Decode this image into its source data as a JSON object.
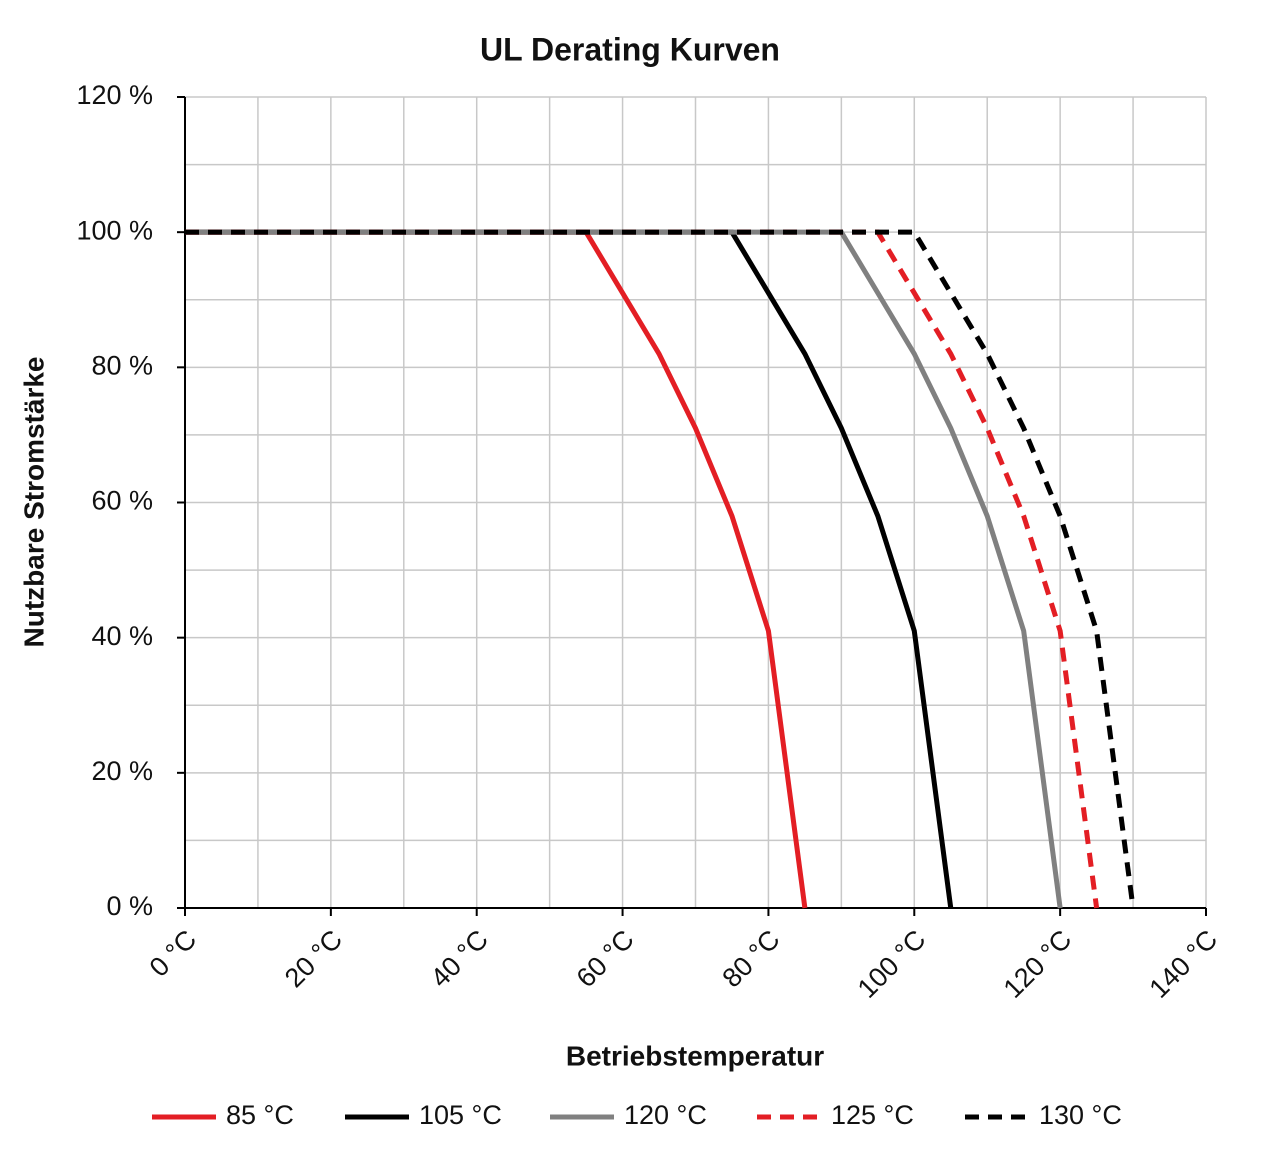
{
  "chart_data": {
    "type": "line",
    "title": "UL Derating Kurven",
    "x_label": "Betriebstemperatur",
    "y_label": "Nutzbare Stromstärke",
    "xlim": [
      0,
      140
    ],
    "ylim": [
      0,
      120
    ],
    "xticks": [
      {
        "value": 0,
        "label": "0 °C"
      },
      {
        "value": 20,
        "label": "20 °C"
      },
      {
        "value": 40,
        "label": "40 °C"
      },
      {
        "value": 60,
        "label": "60 °C"
      },
      {
        "value": 80,
        "label": "80 °C"
      },
      {
        "value": 100,
        "label": "100 °C"
      },
      {
        "value": 120,
        "label": "120 °C"
      },
      {
        "value": 140,
        "label": "140 °C"
      }
    ],
    "yticks": [
      {
        "value": 0,
        "label": "0 %"
      },
      {
        "value": 20,
        "label": "20 %"
      },
      {
        "value": 40,
        "label": "40 %"
      },
      {
        "value": 60,
        "label": "60 %"
      },
      {
        "value": 80,
        "label": "80 %"
      },
      {
        "value": 100,
        "label": "100 %"
      },
      {
        "value": 120,
        "label": "120 %"
      }
    ],
    "grid": true,
    "minor_grid": true,
    "legend": "bottom",
    "series": [
      {
        "name": "85 °C",
        "color": "#e31e24",
        "dash": false,
        "x": [
          0,
          55,
          65,
          70,
          75,
          80,
          85
        ],
        "values": [
          100,
          100,
          82,
          71,
          58,
          41,
          0
        ]
      },
      {
        "name": "105 °C",
        "color": "#000000",
        "dash": false,
        "x": [
          0,
          75,
          85,
          90,
          95,
          100,
          105
        ],
        "values": [
          100,
          100,
          82,
          71,
          58,
          41,
          0
        ]
      },
      {
        "name": "120 °C",
        "color": "#808080",
        "dash": false,
        "x": [
          0,
          90,
          100,
          105,
          110,
          115,
          120
        ],
        "values": [
          100,
          100,
          82,
          71,
          58,
          41,
          0
        ]
      },
      {
        "name": "125 °C",
        "color": "#e31e24",
        "dash": true,
        "x": [
          0,
          95,
          105,
          110,
          115,
          120,
          125
        ],
        "values": [
          100,
          100,
          82,
          71,
          58,
          41,
          0
        ]
      },
      {
        "name": "130 °C",
        "color": "#000000",
        "dash": true,
        "x": [
          0,
          100,
          110,
          115,
          120,
          125,
          130
        ],
        "values": [
          100,
          100,
          82,
          71,
          58,
          41,
          0
        ]
      }
    ]
  }
}
